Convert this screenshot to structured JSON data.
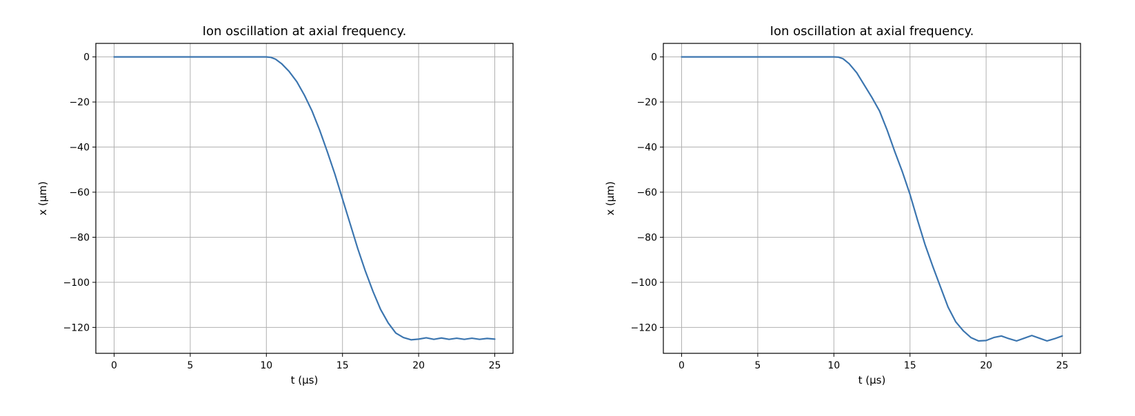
{
  "colors": {
    "line": "#3b75af",
    "grid": "#b0b0b0"
  },
  "chart_data": [
    {
      "type": "line",
      "title": "Ion oscillation at axial frequency.",
      "xlabel": "t (µs)",
      "ylabel": "x (µm)",
      "xlim": [
        -1.2,
        26.2
      ],
      "ylim": [
        -131.5,
        6
      ],
      "xticks": [
        0,
        5,
        10,
        15,
        20,
        25
      ],
      "yticks": [
        0,
        -20,
        -40,
        -60,
        -80,
        -100,
        -120
      ],
      "xtick_labels": [
        "0",
        "5",
        "10",
        "15",
        "20",
        "25"
      ],
      "ytick_labels": [
        "0",
        "−20",
        "−40",
        "−60",
        "−80",
        "−100",
        "−120"
      ],
      "grid": true,
      "series": [
        {
          "x": [
            0,
            2,
            4,
            6,
            8,
            10,
            10.3,
            10.6,
            11,
            11.5,
            12,
            12.5,
            13,
            13.5,
            14,
            14.5,
            15,
            15.5,
            16,
            16.5,
            17,
            17.5,
            18,
            18.5,
            19,
            19.5,
            20,
            20.5,
            21,
            21.5,
            22,
            22.5,
            23,
            23.5,
            24,
            24.5,
            25
          ],
          "y": [
            0,
            0,
            0,
            0,
            0,
            0,
            -0.2,
            -1,
            -3,
            -6.5,
            -11,
            -17,
            -24,
            -32.5,
            -42,
            -52,
            -63,
            -74,
            -85,
            -95,
            -104,
            -112,
            -118,
            -122.5,
            -124.5,
            -125.5,
            -125.2,
            -124.6,
            -125.3,
            -124.7,
            -125.3,
            -124.8,
            -125.3,
            -124.8,
            -125.3,
            -124.9,
            -125.2
          ]
        }
      ]
    },
    {
      "type": "line",
      "title": "Ion oscillation at axial frequency.",
      "xlabel": "t (µs)",
      "ylabel": "x (µm)",
      "xlim": [
        -1.2,
        26.2
      ],
      "ylim": [
        -131.5,
        6
      ],
      "xticks": [
        0,
        5,
        10,
        15,
        20,
        25
      ],
      "yticks": [
        0,
        -20,
        -40,
        -60,
        -80,
        -100,
        -120
      ],
      "xtick_labels": [
        "0",
        "5",
        "10",
        "15",
        "20",
        "25"
      ],
      "ytick_labels": [
        "0",
        "−20",
        "−40",
        "−60",
        "−80",
        "−100",
        "−120"
      ],
      "grid": true,
      "series": [
        {
          "x": [
            0,
            2,
            4,
            6,
            8,
            10,
            10.3,
            10.6,
            11,
            11.5,
            12,
            12.5,
            13,
            13.5,
            14,
            14.5,
            15,
            15.5,
            16,
            16.5,
            17,
            17.5,
            18,
            18.5,
            19,
            19.5,
            20,
            20.5,
            21,
            21.5,
            22,
            22.5,
            23,
            23.5,
            24,
            24.5,
            25
          ],
          "y": [
            0,
            0,
            0,
            0,
            0,
            0,
            -0.1,
            -0.8,
            -3,
            -7,
            -12.5,
            -18,
            -24,
            -32.5,
            -42,
            -51,
            -61,
            -72.5,
            -83.5,
            -93,
            -102,
            -111,
            -117.5,
            -121.5,
            -124.5,
            -126,
            -125.8,
            -124.5,
            -123.8,
            -125,
            -126,
            -124.8,
            -123.6,
            -124.8,
            -126,
            -125,
            -123.8
          ]
        }
      ]
    }
  ]
}
